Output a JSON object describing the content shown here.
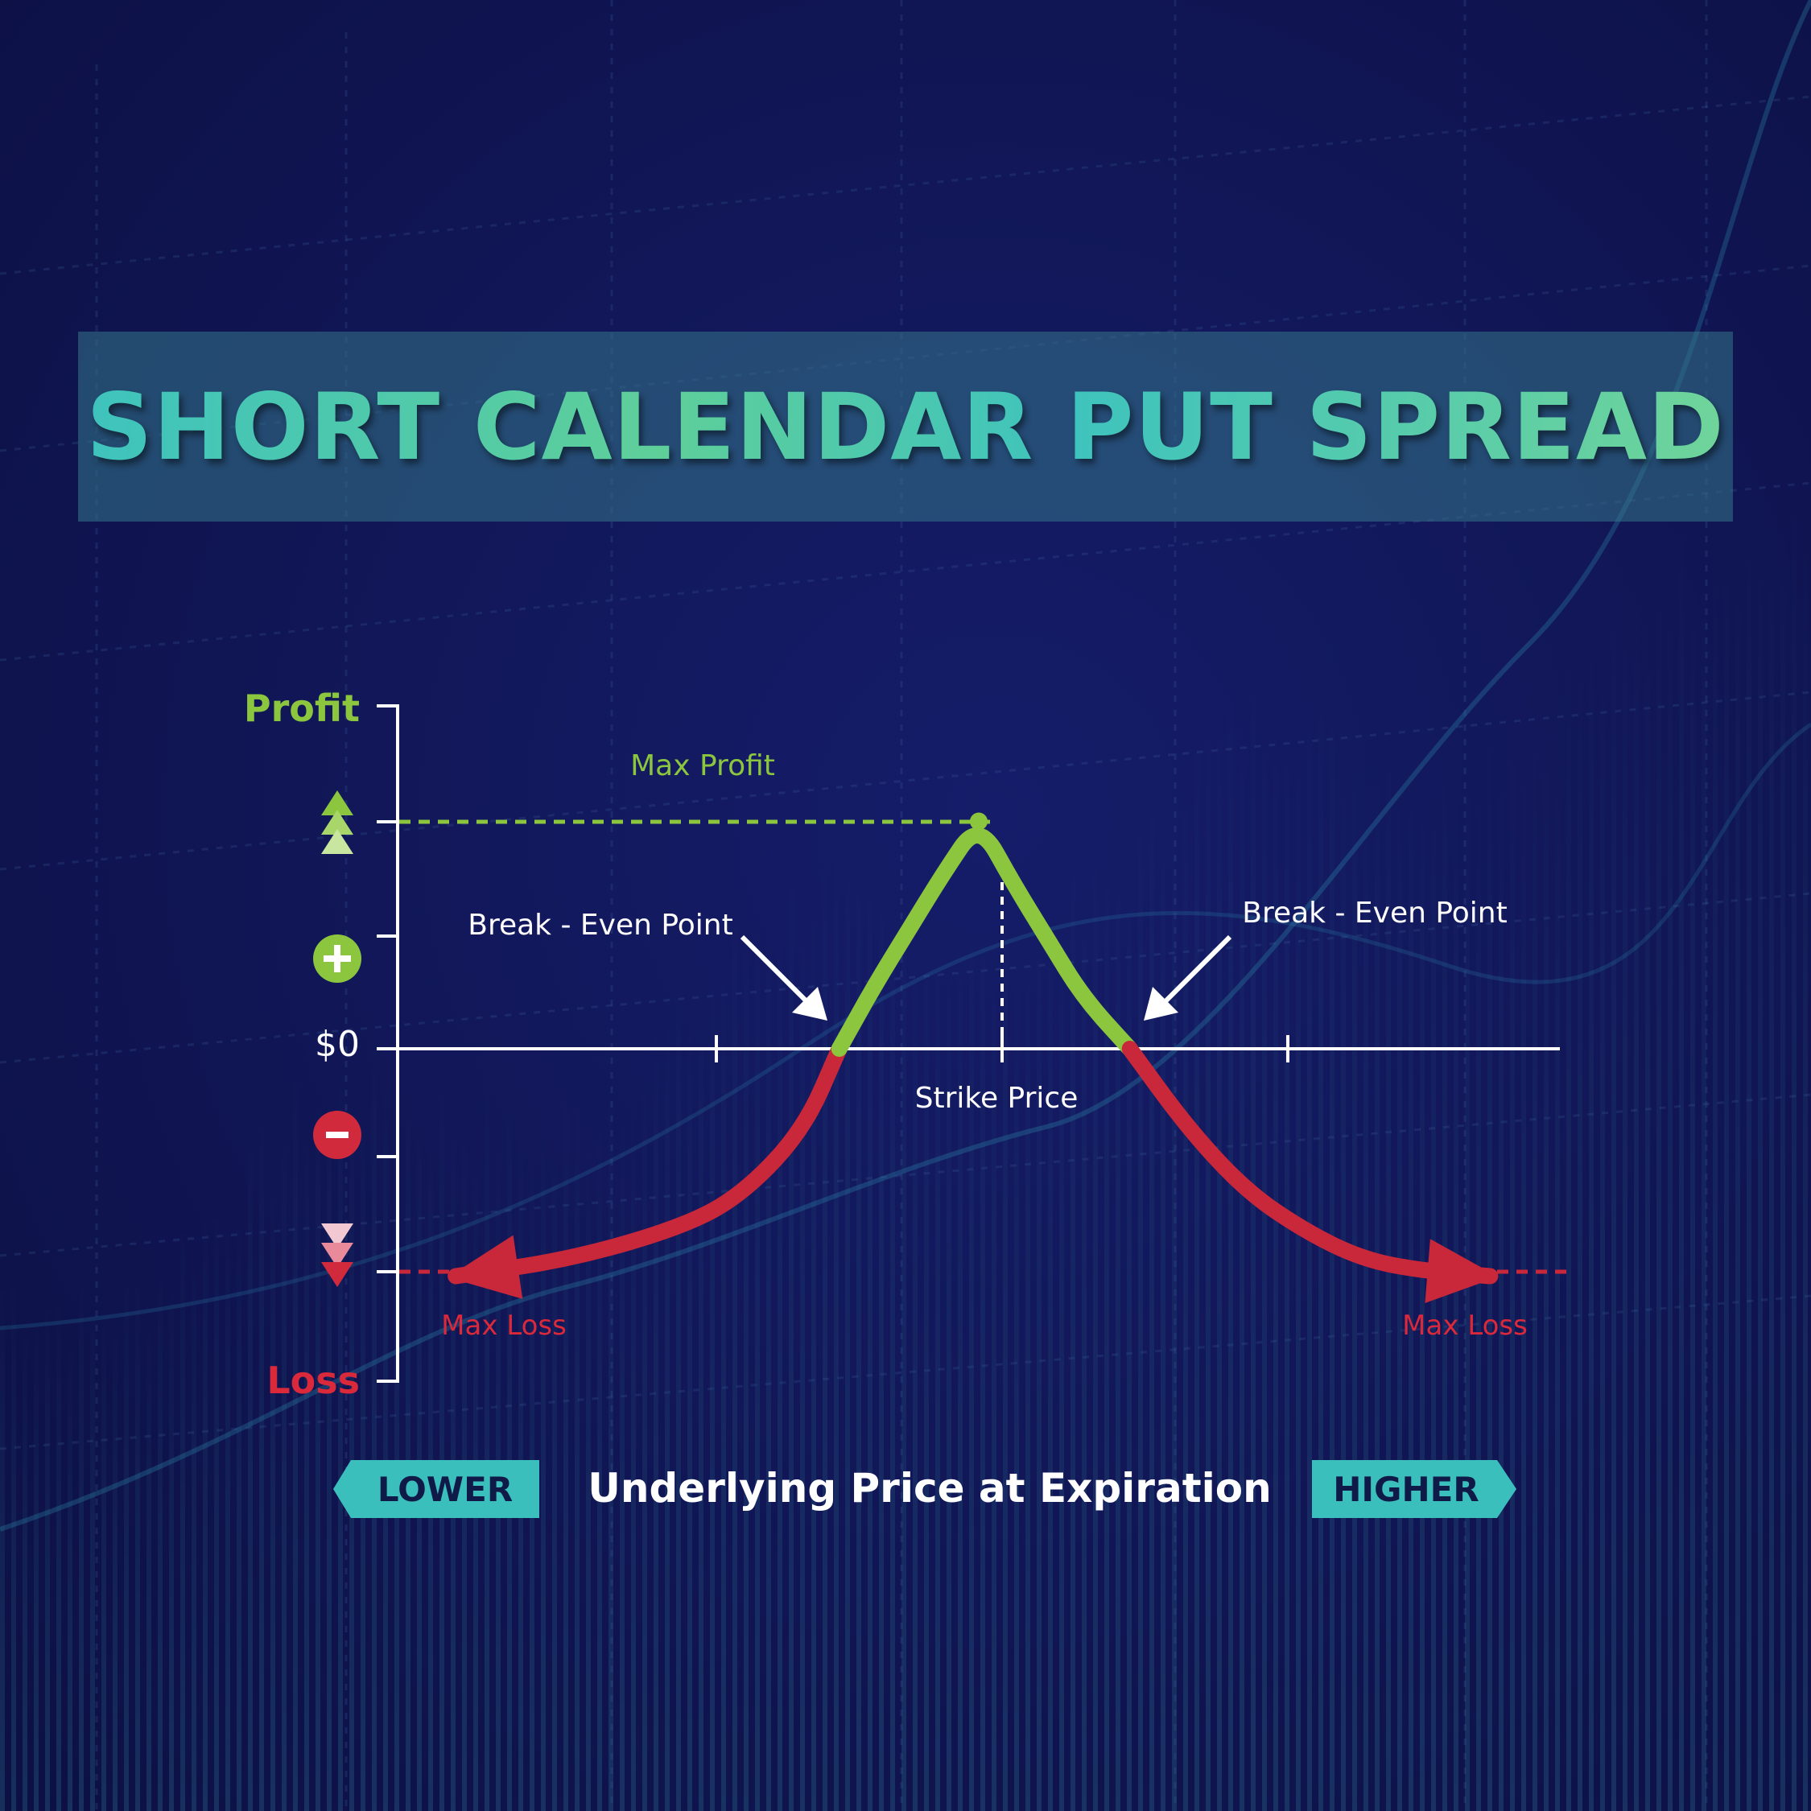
{
  "title": "SHORT CALENDAR PUT SPREAD",
  "chart_data": {
    "type": "line",
    "title": "SHORT CALENDAR PUT SPREAD",
    "xlabel": "Underlying Price at Expiration",
    "ylabel": "",
    "x_direction_labels": {
      "lower": "LOWER",
      "higher": "HIGHER"
    },
    "y_axis_labels": {
      "top": "Profit",
      "zero": "$0",
      "bottom": "Loss"
    },
    "annotations": {
      "max_profit": "Max Profit",
      "break_even_left": "Break - Even Point",
      "break_even_right": "Break - Even Point",
      "strike": "Strike Price",
      "max_loss_left": "Max Loss",
      "max_loss_right": "Max Loss"
    },
    "xlim": [
      0,
      10
    ],
    "ylim": [
      -3,
      3
    ],
    "strike": 5,
    "break_even": [
      3.8,
      6.3
    ],
    "max_profit": 2,
    "max_loss": -2,
    "series": [
      {
        "x": [
          0.5,
          1.5,
          2.5,
          3.0,
          3.5,
          3.8,
          4.1,
          4.4,
          4.7,
          5.0,
          5.3,
          5.6,
          5.9,
          6.3,
          6.8,
          7.3,
          7.8,
          8.3,
          8.8,
          9.4
        ],
        "y": [
          -2.0,
          -1.85,
          -1.55,
          -1.25,
          -0.7,
          0.0,
          0.55,
          1.05,
          1.55,
          2.0,
          1.45,
          0.95,
          0.45,
          0.0,
          -0.7,
          -1.25,
          -1.6,
          -1.85,
          -1.95,
          -2.0
        ]
      }
    ],
    "colors": {
      "profit": "#8cc63f",
      "loss": "#c8283a",
      "axis": "#ffffff",
      "accent": "#3bbfbd"
    },
    "grid": false,
    "legend": "none"
  }
}
